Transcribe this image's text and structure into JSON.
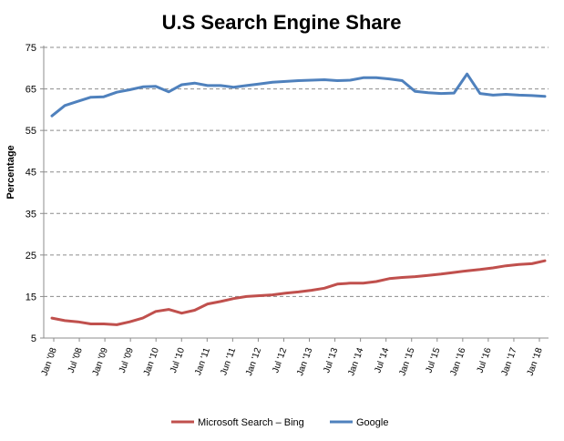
{
  "chart_data": {
    "type": "line",
    "title": "U.S  Search Engine Share",
    "xlabel": "",
    "ylabel": "Percentage",
    "ylim": [
      5,
      75
    ],
    "yticks": [
      5,
      15,
      25,
      35,
      45,
      55,
      65,
      75
    ],
    "grid": true,
    "legend_position": "bottom",
    "x_tick_labels": [
      "Jan '08",
      "Jul '08",
      "Jan '09",
      "Jul '09",
      "Jan '10",
      "Jul '10",
      "Jan '11",
      "Jun '11",
      "Jan '12",
      "Jul '12",
      "Jan '13",
      "Jul '13",
      "Jan '14",
      "Jul '14",
      "Jan '15",
      "Jul '15",
      "Jan '16",
      "Jul '16",
      "Jan '17",
      "Jan '18"
    ],
    "series": [
      {
        "name": "Microsoft Search – Bing",
        "color": "#C0504D",
        "values": [
          9.8,
          9.2,
          8.9,
          8.4,
          8.4,
          8.2,
          8.9,
          9.8,
          11.4,
          11.9,
          11.0,
          11.7,
          13.2,
          13.8,
          14.5,
          15.0,
          15.2,
          15.4,
          15.8,
          16.1,
          16.5,
          17.0,
          18.0,
          18.2,
          18.2,
          18.6,
          19.3,
          19.6,
          19.8,
          20.1,
          20.4,
          20.8,
          21.2,
          21.5,
          21.9,
          22.4,
          22.7,
          22.9,
          23.6
        ]
      },
      {
        "name": "Google",
        "color": "#4F81BD",
        "values": [
          58.5,
          61.0,
          62.0,
          63.0,
          63.1,
          64.2,
          64.8,
          65.5,
          65.6,
          64.3,
          66.0,
          66.4,
          65.8,
          65.8,
          65.4,
          65.8,
          66.2,
          66.6,
          66.8,
          67.0,
          67.1,
          67.2,
          67.0,
          67.1,
          67.7,
          67.7,
          67.4,
          67.0,
          64.4,
          64.1,
          63.9,
          64.0,
          68.6,
          63.9,
          63.5,
          63.7,
          63.5,
          63.4,
          63.2
        ]
      }
    ]
  }
}
